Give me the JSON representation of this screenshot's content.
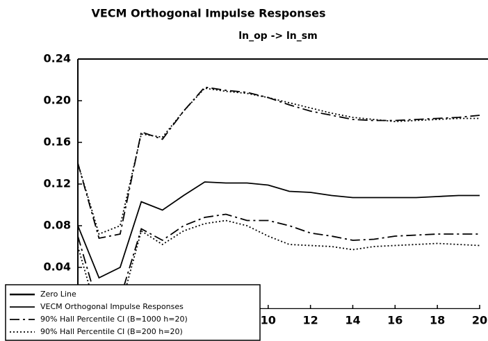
{
  "chart_data": {
    "type": "line",
    "title": "VECM Orthogonal Impulse Responses",
    "subtitle": "ln_op -> ln_sm",
    "x": [
      1,
      2,
      3,
      4,
      5,
      6,
      7,
      8,
      9,
      10,
      11,
      12,
      13,
      14,
      15,
      16,
      17,
      18,
      19,
      20
    ],
    "xlim": [
      1,
      20
    ],
    "xticks": [
      10,
      12,
      14,
      16,
      18,
      20
    ],
    "ylim": [
      0,
      0.24
    ],
    "yticks": [
      0.04,
      0.08,
      0.12,
      0.16,
      {
        "value": 0.2,
        "label": "0.20"
      },
      0.24
    ],
    "legend": "lower left",
    "series": [
      {
        "name": "Zero Line",
        "color": "#000000",
        "style": "solid",
        "width": 2.5,
        "value": 0
      },
      {
        "name": "VECM Orthogonal Impulse Responses",
        "color": "#000000",
        "style": "solid",
        "width": 1.8,
        "values": [
          0.08,
          0.03,
          0.04,
          0.103,
          0.095,
          0.109,
          0.122,
          0.121,
          0.121,
          0.119,
          0.113,
          0.112,
          0.109,
          0.107,
          0.107,
          0.107,
          0.107,
          0.108,
          0.109,
          0.109
        ]
      },
      {
        "name": "90% Hall Percentile CI (B=1000 h=20)",
        "color": "#000000",
        "style": "dashdot",
        "width": 1.8,
        "upper": [
          0.14,
          0.068,
          0.072,
          0.17,
          0.163,
          0.19,
          0.213,
          0.21,
          0.208,
          0.203,
          0.196,
          0.19,
          0.186,
          0.182,
          0.181,
          0.181,
          0.182,
          0.183,
          0.184,
          0.186
        ],
        "lower": [
          0.07,
          0.0,
          0.01,
          0.077,
          0.066,
          0.08,
          0.088,
          0.091,
          0.085,
          0.085,
          0.08,
          0.073,
          0.07,
          0.066,
          0.067,
          0.07,
          0.071,
          0.072,
          0.072,
          0.072
        ]
      },
      {
        "name": "90% Hall Percentile CI (B=200 h=20)",
        "color": "#000000",
        "style": "dotted",
        "width": 1.8,
        "upper": [
          0.14,
          0.072,
          0.08,
          0.168,
          0.165,
          0.19,
          0.212,
          0.209,
          0.207,
          0.203,
          0.198,
          0.193,
          0.188,
          0.184,
          0.182,
          0.18,
          0.181,
          0.182,
          0.183,
          0.183
        ],
        "lower": [
          0.06,
          -0.01,
          0.0,
          0.075,
          0.062,
          0.075,
          0.082,
          0.085,
          0.08,
          0.07,
          0.062,
          0.061,
          0.06,
          0.057,
          0.06,
          0.061,
          0.062,
          0.063,
          0.062,
          0.061
        ]
      }
    ]
  }
}
